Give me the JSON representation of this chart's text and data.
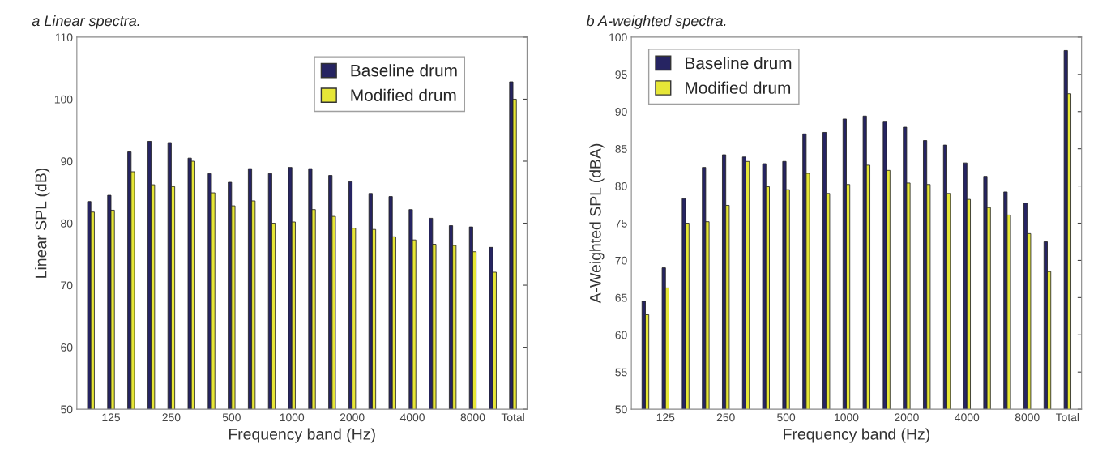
{
  "chart_data": [
    {
      "type": "bar",
      "title": "a Linear spectra.",
      "xlabel": "Frequency band (Hz)",
      "ylabel": "Linear SPL (dB)",
      "categories": [
        null,
        "125",
        null,
        null,
        "250",
        null,
        null,
        "500",
        null,
        null,
        "1000",
        null,
        null,
        "2000",
        null,
        null,
        "4000",
        null,
        null,
        "8000",
        null,
        "Total"
      ],
      "series": [
        {
          "name": "Baseline drum",
          "color": "#262462",
          "values": [
            83.5,
            84.5,
            91.5,
            93.2,
            93.0,
            90.5,
            88.0,
            86.6,
            88.8,
            88.0,
            89.0,
            88.8,
            87.7,
            86.7,
            84.8,
            84.3,
            82.2,
            80.8,
            79.6,
            79.4,
            76.1,
            102.8
          ]
        },
        {
          "name": "Modified drum",
          "color": "#e6e637",
          "values": [
            81.8,
            82.1,
            88.3,
            86.2,
            85.9,
            90.0,
            84.9,
            82.8,
            83.6,
            80.0,
            80.2,
            82.2,
            81.1,
            79.2,
            79.0,
            77.8,
            77.3,
            76.6,
            76.4,
            75.4,
            72.1,
            100.0
          ]
        }
      ],
      "ylim": [
        50,
        110
      ],
      "yticks": [
        50,
        60,
        70,
        80,
        90,
        100,
        110
      ],
      "legend": "top right",
      "grid": false
    },
    {
      "type": "bar",
      "title": "b A-weighted spectra.",
      "xlabel": "Frequency band (Hz)",
      "ylabel": "A-Weighted SPL (dBA)",
      "categories": [
        null,
        "125",
        null,
        null,
        "250",
        null,
        null,
        "500",
        null,
        null,
        "1000",
        null,
        null,
        "2000",
        null,
        null,
        "4000",
        null,
        null,
        "8000",
        null,
        "Total"
      ],
      "series": [
        {
          "name": "Baseline drum",
          "color": "#262462",
          "values": [
            64.5,
            69.0,
            78.3,
            82.5,
            84.2,
            83.9,
            83.0,
            83.3,
            87.0,
            87.2,
            89.0,
            89.4,
            88.7,
            87.9,
            86.1,
            85.5,
            83.1,
            81.3,
            79.2,
            77.7,
            72.5,
            98.2
          ]
        },
        {
          "name": "Modified drum",
          "color": "#e6e637",
          "values": [
            62.7,
            66.3,
            75.0,
            75.2,
            77.4,
            83.3,
            79.9,
            79.5,
            81.7,
            79.0,
            80.2,
            82.8,
            82.1,
            80.4,
            80.2,
            79.0,
            78.2,
            77.1,
            76.1,
            73.6,
            68.5,
            92.4
          ]
        }
      ],
      "ylim": [
        50,
        100
      ],
      "yticks": [
        50,
        55,
        60,
        65,
        70,
        75,
        80,
        85,
        90,
        95,
        100
      ],
      "legend": "top left",
      "grid": false
    }
  ]
}
